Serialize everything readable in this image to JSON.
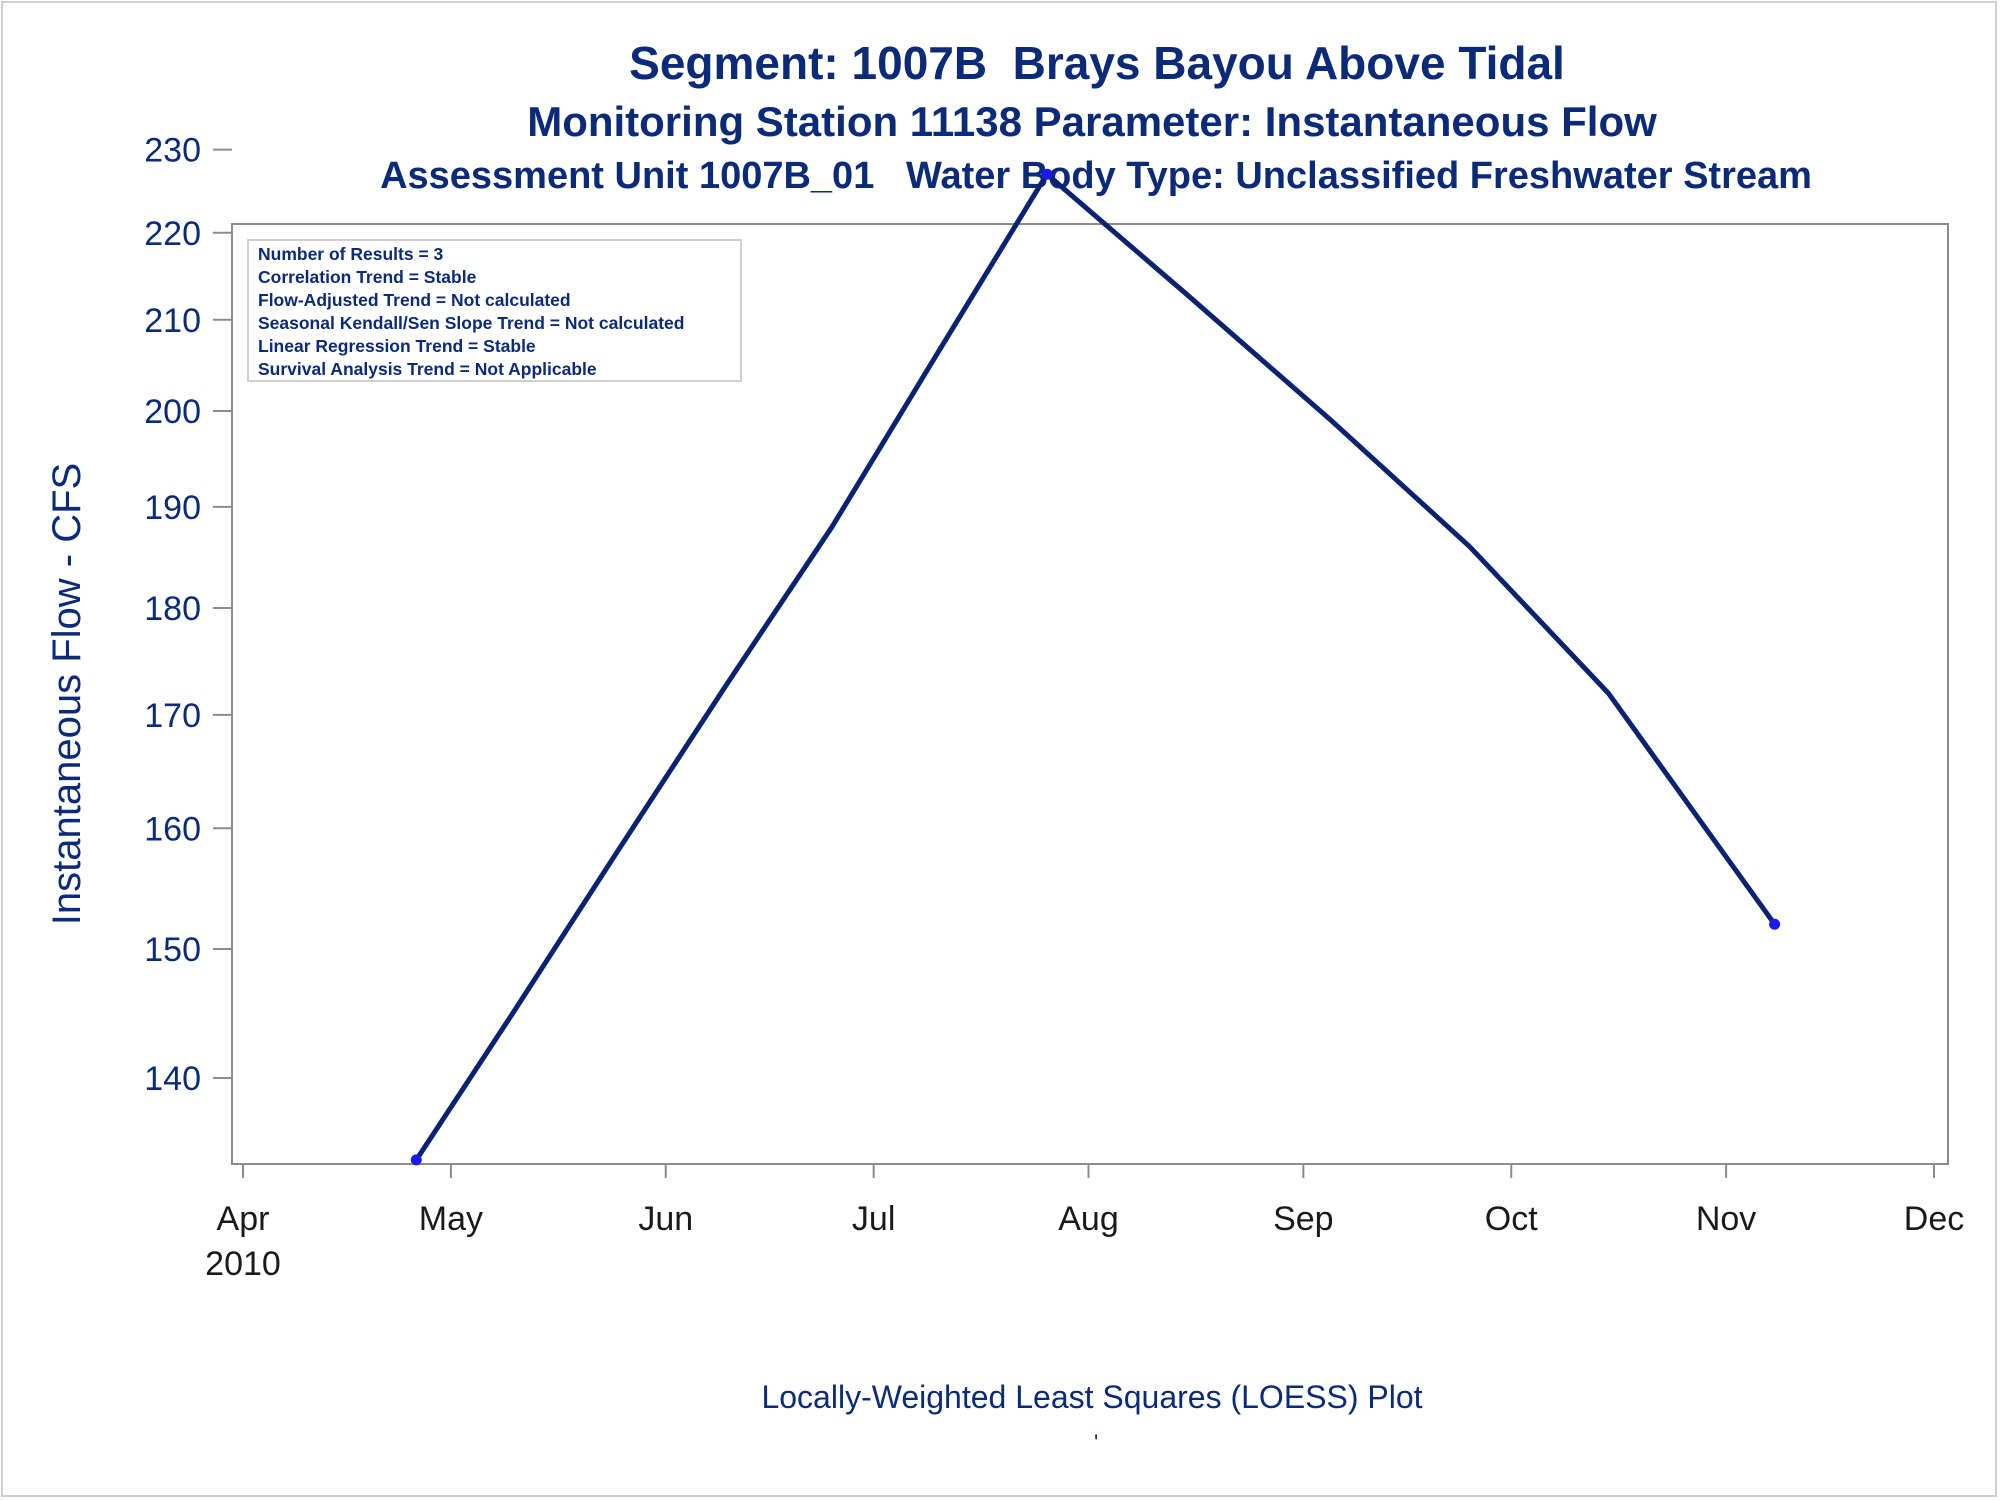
{
  "titles": {
    "line1": "Segment: 1007B  Brays Bayou Above Tidal",
    "line2": "Monitoring Station 11138 Parameter: Instantaneous Flow",
    "line3": "Assessment Unit 1007B_01   Water Body Type: Unclassified Freshwater Stream"
  },
  "footnote": "Locally-Weighted Least Squares (LOESS) Plot",
  "footnote_mark": "'",
  "stats_box": [
    "Number of Results = 3",
    "Correlation Trend = Stable",
    "Flow-Adjusted Trend = Not calculated",
    "Seasonal Kendall/Sen Slope Trend = Not calculated",
    "Linear Regression Trend = Stable",
    "Survival Analysis Trend = Not Applicable"
  ],
  "colors": {
    "text": "#0b2a78",
    "line": "#0a2370",
    "marker": "#1a1aee",
    "axis": "#8c8c8c"
  },
  "chart_data": {
    "type": "line",
    "title": "Segment: 1007B  Brays Bayou Above Tidal",
    "xlabel": "",
    "ylabel": "Instantaneous Flow - CFS",
    "x_tick_labels": [
      "Apr",
      "May",
      "Jun",
      "Jul",
      "Aug",
      "Sep",
      "Oct",
      "Nov",
      "Dec"
    ],
    "x_tick_dates": [
      "2010-04-01",
      "2010-05-01",
      "2010-06-01",
      "2010-07-01",
      "2010-08-01",
      "2010-09-01",
      "2010-10-01",
      "2010-11-01",
      "2010-12-01"
    ],
    "x_year_label": "2010",
    "xlim": [
      "2010-04-01",
      "2010-12-01"
    ],
    "yscale": "log",
    "y_ticks": [
      140,
      150,
      160,
      170,
      180,
      190,
      200,
      210,
      220,
      230
    ],
    "ylim": [
      133,
      232
    ],
    "grid": false,
    "points": [
      {
        "x": "2010-04-26",
        "y": 134
      },
      {
        "x": "2010-07-26",
        "y": 227
      },
      {
        "x": "2010-11-08",
        "y": 152
      }
    ],
    "loess_curve": [
      {
        "x": "2010-04-26",
        "y": 134
      },
      {
        "x": "2010-05-10",
        "y": 145
      },
      {
        "x": "2010-05-25",
        "y": 158
      },
      {
        "x": "2010-06-10",
        "y": 173
      },
      {
        "x": "2010-06-25",
        "y": 188
      },
      {
        "x": "2010-07-10",
        "y": 206
      },
      {
        "x": "2010-07-26",
        "y": 227
      },
      {
        "x": "2010-08-15",
        "y": 213
      },
      {
        "x": "2010-09-05",
        "y": 199
      },
      {
        "x": "2010-09-25",
        "y": 186
      },
      {
        "x": "2010-10-15",
        "y": 172
      },
      {
        "x": "2010-11-08",
        "y": 152
      }
    ]
  }
}
